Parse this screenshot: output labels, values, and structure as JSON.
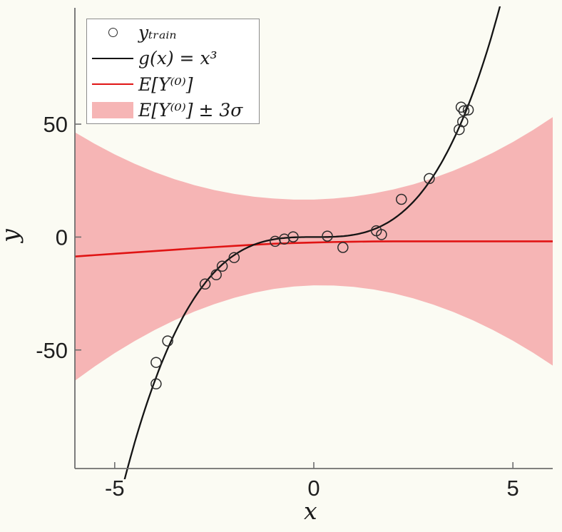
{
  "chart_data": {
    "type": "line",
    "title": "",
    "xlabel": "x",
    "ylabel": "y",
    "xlim": [
      -6,
      6
    ],
    "ylim": [
      -102.5,
      101.5
    ],
    "x_ticks": [
      "-5",
      "0",
      "5"
    ],
    "x_tick_values": [
      -5,
      0,
      5
    ],
    "y_ticks": [
      "-50",
      "0",
      "50"
    ],
    "y_tick_values": [
      -50,
      0,
      50
    ],
    "grid": false,
    "legend_position": "upper-left",
    "colors": {
      "true_function": "#141414",
      "mean_line": "#e01414",
      "band_fill": "#f6b5b5",
      "marker_edge": "#2b2b2b",
      "spine": "#6e6e6e",
      "tick_label": "#1f1f1f"
    },
    "series": [
      {
        "name": "y_train",
        "type": "scatter",
        "marker": "open-circle",
        "points": [
          [
            -3.96,
            -55.5
          ],
          [
            -3.96,
            -65.0
          ],
          [
            -3.67,
            -46.0
          ],
          [
            -2.73,
            -20.8
          ],
          [
            -2.45,
            -16.7
          ],
          [
            -2.3,
            -12.9
          ],
          [
            -2.0,
            -9.1
          ],
          [
            -0.97,
            -1.9
          ],
          [
            -0.74,
            -0.9
          ],
          [
            -0.52,
            0.1
          ],
          [
            0.34,
            0.4
          ],
          [
            0.73,
            -4.6
          ],
          [
            1.57,
            2.8
          ],
          [
            1.7,
            1.1
          ],
          [
            2.2,
            16.7
          ],
          [
            2.9,
            25.9
          ],
          [
            3.65,
            47.6
          ],
          [
            3.74,
            51.1
          ],
          [
            3.7,
            57.5
          ],
          [
            3.77,
            55.9
          ],
          [
            3.88,
            56.3
          ]
        ]
      },
      {
        "name": "g(x) = x^3",
        "type": "line",
        "formula": "y = x^3",
        "sample_range": [
          -4.75,
          4.75
        ],
        "sample_step": 0.05
      },
      {
        "name": "E[Y^(0)]",
        "type": "line",
        "x": [
          -6,
          -5.5,
          -5,
          -4.5,
          -4,
          -3.5,
          -3,
          -2.5,
          -2,
          -1.5,
          -1,
          -0.5,
          0,
          0.5,
          1,
          1.5,
          2,
          2.5,
          3,
          3.5,
          4,
          4.5,
          5,
          5.5,
          6
        ],
        "y": [
          -8.6,
          -8.0,
          -7.4,
          -6.8,
          -6.2,
          -5.6,
          -5.0,
          -4.45,
          -3.9,
          -3.4,
          -2.95,
          -2.65,
          -2.4,
          -2.2,
          -2.05,
          -1.95,
          -1.9,
          -1.9,
          -1.9,
          -1.9,
          -1.9,
          -1.9,
          -1.9,
          -1.9,
          -1.9
        ]
      },
      {
        "name": "E[Y^(0)] ± 3σ",
        "type": "band",
        "x": [
          -6,
          -5.5,
          -5,
          -4.5,
          -4,
          -3.5,
          -3,
          -2.5,
          -2,
          -1.5,
          -1,
          -0.5,
          0,
          0.5,
          1,
          1.5,
          2,
          2.5,
          3,
          3.5,
          4,
          4.5,
          5,
          5.5,
          6
        ],
        "center": [
          -8.6,
          -8.0,
          -7.4,
          -6.8,
          -6.2,
          -5.6,
          -5.0,
          -4.45,
          -3.9,
          -3.4,
          -2.95,
          -2.65,
          -2.4,
          -2.2,
          -2.05,
          -1.95,
          -1.9,
          -1.9,
          -1.9,
          -1.9,
          -1.9,
          -1.9,
          -1.9,
          -1.9,
          -1.9
        ],
        "halfwidth": [
          55,
          49.25,
          44,
          39.25,
          35,
          31.25,
          28,
          25.25,
          23,
          21.25,
          20,
          19.25,
          19,
          19.25,
          20,
          21.25,
          23,
          25.25,
          28,
          31.25,
          35,
          39.25,
          44,
          49.25,
          55
        ]
      }
    ],
    "legend": [
      {
        "marker": "circle",
        "color": "#2b2b2b",
        "label": "yₜᵣₐᵢₙ"
      },
      {
        "marker": "line",
        "color": "#141414",
        "label": "g(x) = x³"
      },
      {
        "marker": "line",
        "color": "#e01414",
        "label": "E[Y⁽⁰⁾]"
      },
      {
        "marker": "patch",
        "color": "#f6b5b5",
        "label": "E[Y⁽⁰⁾] ± 3σ"
      }
    ]
  }
}
